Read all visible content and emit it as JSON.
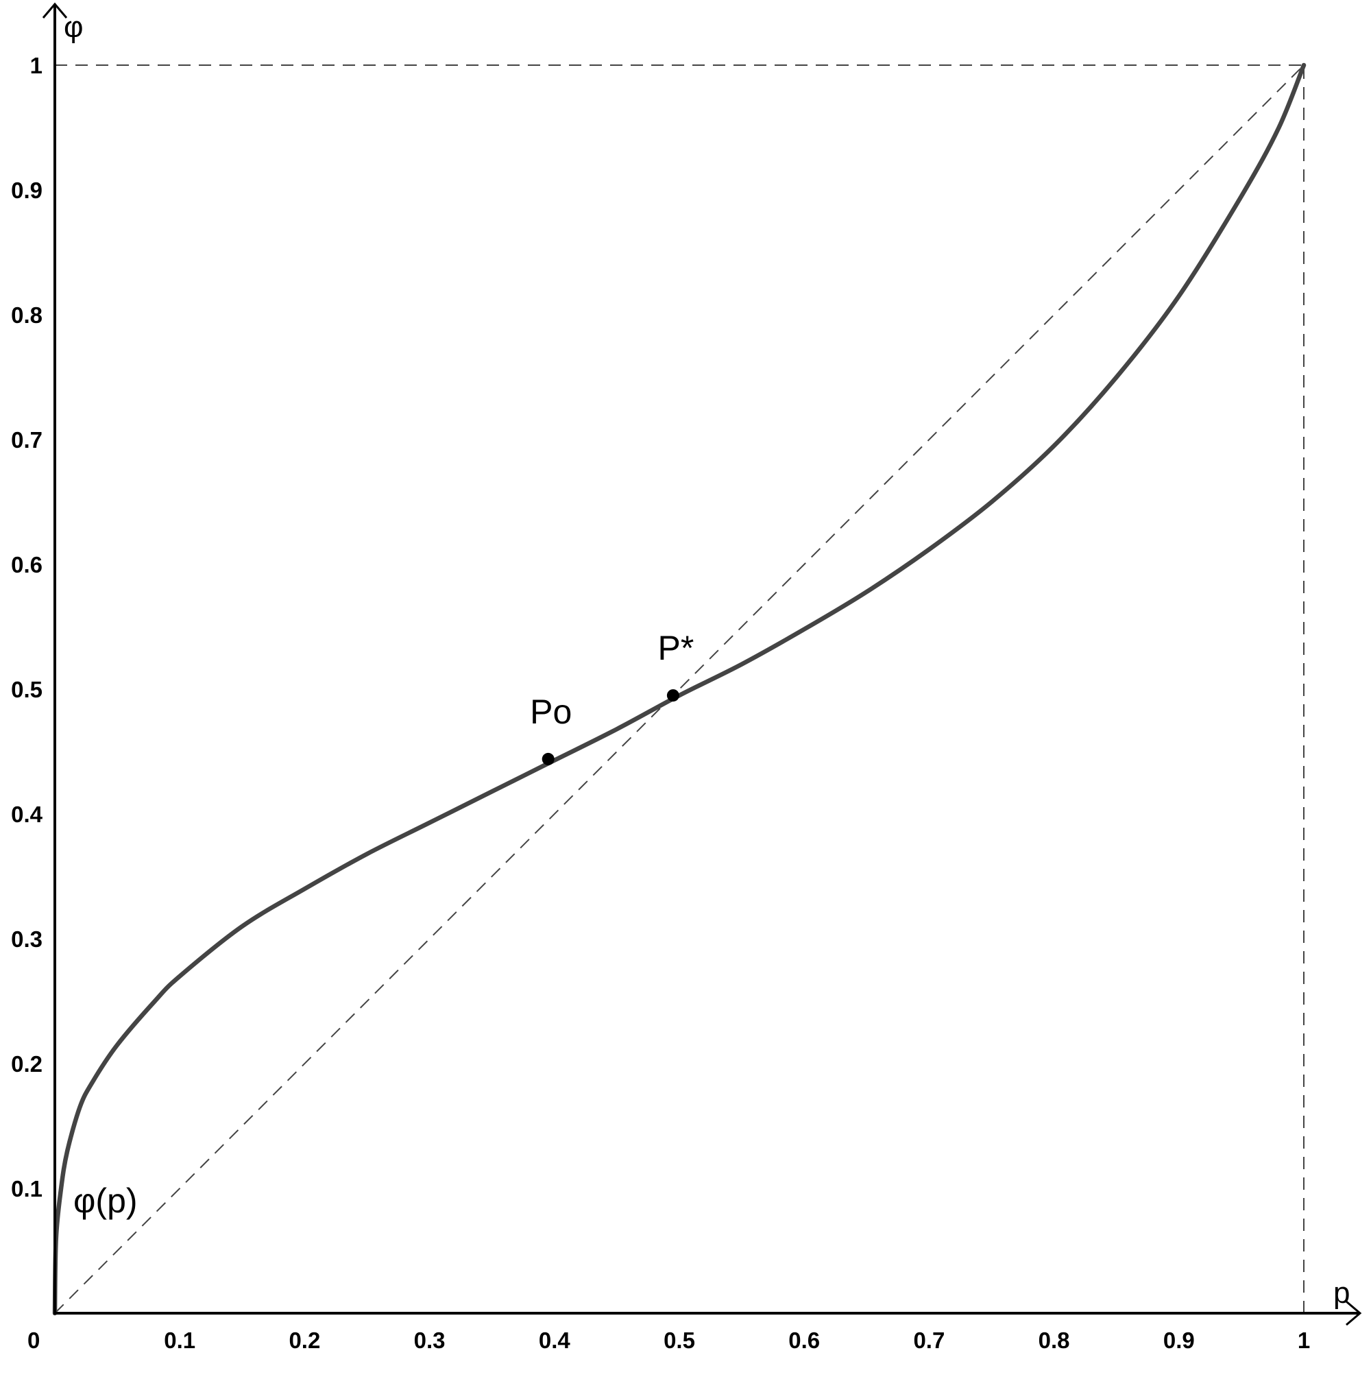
{
  "chart_data": {
    "type": "line",
    "xlabel": "p",
    "ylabel": "φ",
    "xlim": [
      0,
      1
    ],
    "ylim": [
      0,
      1
    ],
    "x_ticks": [
      "0.1",
      "0.2",
      "0.3",
      "0.4",
      "0.5",
      "0.6",
      "0.7",
      "0.8",
      "0.9",
      "1"
    ],
    "y_ticks": [
      "0.1",
      "0.2",
      "0.3",
      "0.4",
      "0.5",
      "0.6",
      "0.7",
      "0.8",
      "0.9",
      "1"
    ],
    "origin_label": "0",
    "grid": false,
    "curve_color": "#444444",
    "series": [
      {
        "name": "φ(p)",
        "x": [
          0,
          0.001,
          0.005,
          0.01,
          0.02,
          0.03,
          0.05,
          0.08,
          0.1,
          0.15,
          0.2,
          0.25,
          0.3,
          0.35,
          0.4,
          0.45,
          0.5,
          0.55,
          0.6,
          0.65,
          0.7,
          0.75,
          0.8,
          0.85,
          0.9,
          0.95,
          0.98,
          1.0
        ],
        "y": [
          0,
          0.06,
          0.1,
          0.13,
          0.165,
          0.185,
          0.215,
          0.25,
          0.27,
          0.31,
          0.34,
          0.368,
          0.393,
          0.418,
          0.443,
          0.468,
          0.495,
          0.52,
          0.548,
          0.578,
          0.612,
          0.65,
          0.695,
          0.75,
          0.815,
          0.895,
          0.95,
          1.0
        ]
      }
    ],
    "reference_lines": [
      {
        "type": "diagonal",
        "from": [
          0,
          0
        ],
        "to": [
          1,
          1
        ]
      },
      {
        "type": "horizontal",
        "y": 1,
        "from_x": 0,
        "to_x": 1
      },
      {
        "type": "vertical",
        "x": 1,
        "from_y": 0,
        "to_y": 1
      }
    ],
    "points": [
      {
        "label": "Po",
        "x": 0.395,
        "y": 0.444
      },
      {
        "label": "P*",
        "x": 0.495,
        "y": 0.495
      }
    ]
  }
}
